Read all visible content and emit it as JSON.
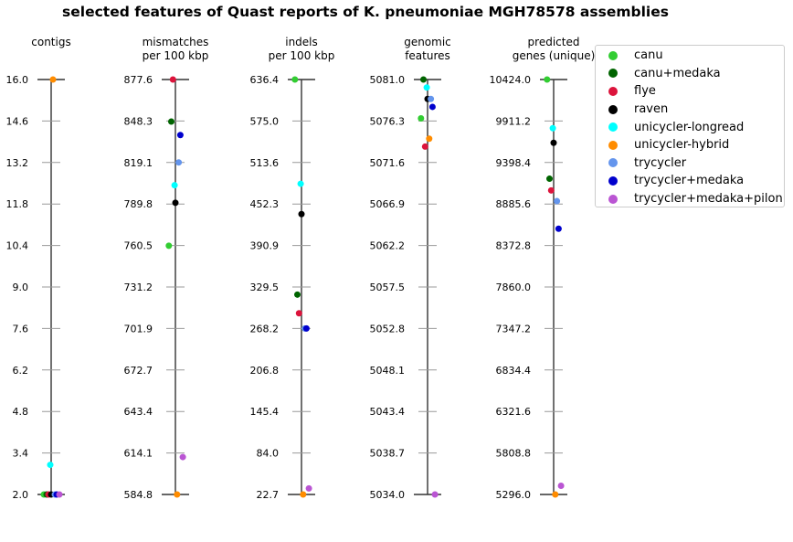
{
  "chart_data": {
    "type": "scatter",
    "title": "selected features of Quast reports of K. pneumoniae MGH78578 assemblies",
    "series": [
      {
        "name": "canu",
        "color": "#32cd32"
      },
      {
        "name": "canu+medaka",
        "color": "#006400"
      },
      {
        "name": "flye",
        "color": "#dc143c"
      },
      {
        "name": "raven",
        "color": "#000000"
      },
      {
        "name": "unicycler-longread",
        "color": "#00ffff"
      },
      {
        "name": "unicycler-hybrid",
        "color": "#ff8c00"
      },
      {
        "name": "trycycler",
        "color": "#6495ed"
      },
      {
        "name": "trycycler+medaka",
        "color": "#0000cd"
      },
      {
        "name": "trycycler+medaka+pilon",
        "color": "#ba55d3"
      }
    ],
    "axes": [
      {
        "label_lines": [
          "contigs"
        ],
        "ylim": [
          2.0,
          16.0
        ],
        "ticks": [
          "16.0",
          "14.6",
          "13.2",
          "11.8",
          "10.4",
          "9.0",
          "7.6",
          "6.2",
          "4.8",
          "3.4",
          "2.0"
        ],
        "values": [
          2,
          2,
          2,
          2,
          3,
          16,
          2,
          2,
          2
        ]
      },
      {
        "label_lines": [
          "mismatches",
          "per 100 kbp"
        ],
        "ylim": [
          584.8,
          877.6
        ],
        "ticks": [
          "877.6",
          "848.3",
          "819.1",
          "789.8",
          "760.5",
          "731.2",
          "701.9",
          "672.7",
          "643.4",
          "614.1",
          "584.8"
        ],
        "values": [
          760.3,
          847.9,
          877.6,
          790.6,
          803.0,
          584.8,
          819.1,
          838.4,
          611.2
        ]
      },
      {
        "label_lines": [
          "indels",
          "per 100 kbp"
        ],
        "ylim": [
          22.7,
          636.4
        ],
        "ticks": [
          "636.4",
          "575.0",
          "513.6",
          "452.3",
          "390.9",
          "329.5",
          "268.2",
          "206.8",
          "145.4",
          "84.0",
          "22.7"
        ],
        "values": [
          636.4,
          318.3,
          290.7,
          437.4,
          482.2,
          22.7,
          268.2,
          268.2,
          31.7
        ]
      },
      {
        "label_lines": [
          "genomic",
          "features"
        ],
        "ylim": [
          5034.0,
          5081.0
        ],
        "ticks": [
          "5081.0",
          "5076.3",
          "5071.6",
          "5066.9",
          "5062.2",
          "5057.5",
          "5052.8",
          "5048.1",
          "5043.4",
          "5038.7",
          "5034.0"
        ],
        "values": [
          5076.6,
          5081.0,
          5073.4,
          5078.8,
          5080.1,
          5074.3,
          5078.8,
          5077.9,
          5034.0
        ]
      },
      {
        "label_lines": [
          "predicted",
          "genes (unique)"
        ],
        "ylim": [
          5296.0,
          10424.0
        ],
        "ticks": [
          "10424.0",
          "9911.2",
          "9398.4",
          "8885.6",
          "8372.8",
          "7860.0",
          "7347.2",
          "6834.4",
          "6321.6",
          "5808.8",
          "5296.0"
        ],
        "values": [
          10424.0,
          9198.0,
          9053.6,
          9641.6,
          9822.2,
          5296.0,
          8921.3,
          8580.0,
          5403.2
        ]
      }
    ]
  }
}
